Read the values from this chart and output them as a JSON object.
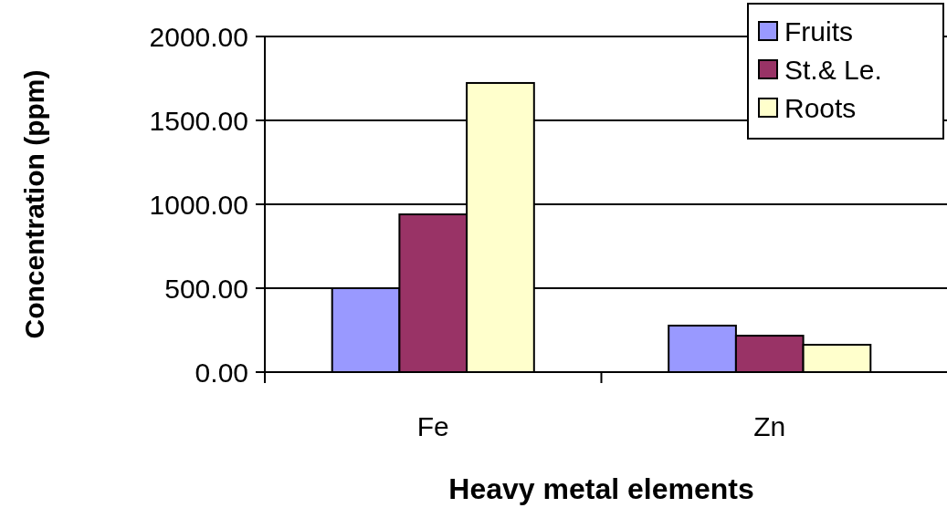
{
  "chart_data": {
    "type": "bar",
    "xlabel": "Heavy metal elements",
    "ylabel": "Concentration (ppm)",
    "categories": [
      "Fe",
      "Zn"
    ],
    "series": [
      {
        "name": "Fruits",
        "color": "#9999ff",
        "values": [
          500,
          277
        ]
      },
      {
        "name": "St.& Le.",
        "color": "#993366",
        "values": [
          940,
          217
        ]
      },
      {
        "name": "Roots",
        "color": "#ffffcc",
        "values": [
          1723,
          163
        ]
      }
    ],
    "ylim": [
      0,
      2000
    ],
    "yticks": [
      {
        "value": 0,
        "label": "0.00"
      },
      {
        "value": 500,
        "label": "500.00"
      },
      {
        "value": 1000,
        "label": "1000.00"
      },
      {
        "value": 1500,
        "label": "1500.00"
      },
      {
        "value": 2000,
        "label": "2000.00"
      }
    ],
    "grid": "y",
    "legend": "top right"
  }
}
